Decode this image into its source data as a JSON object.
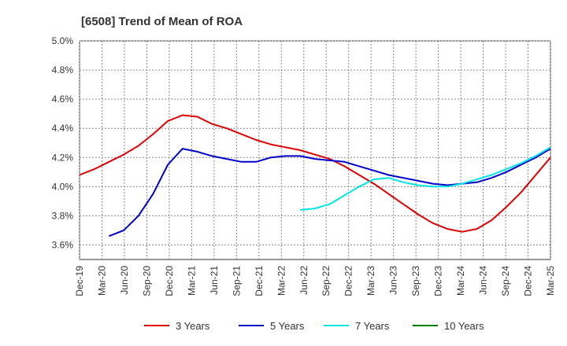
{
  "chart_data": {
    "type": "line",
    "title": "[6508]  Trend of Mean of ROA",
    "xlabel": "",
    "ylabel": "",
    "ylim": [
      3.5,
      5.0
    ],
    "y_ticks": [
      "3.6%",
      "3.8%",
      "4.0%",
      "4.2%",
      "4.4%",
      "4.6%",
      "4.8%",
      "5.0%"
    ],
    "x_ticks": [
      "Dec-19",
      "Mar-20",
      "Jun-20",
      "Sep-20",
      "Dec-20",
      "Mar-21",
      "Jun-21",
      "Sep-21",
      "Dec-21",
      "Mar-22",
      "Jun-22",
      "Sep-22",
      "Dec-22",
      "Mar-23",
      "Jun-23",
      "Sep-23",
      "Dec-23",
      "Mar-24",
      "Jun-24",
      "Sep-24",
      "Dec-24",
      "Mar-25"
    ],
    "grid": true,
    "legend_position": "bottom",
    "series": [
      {
        "name": "3 Years",
        "color": "#dd0000",
        "values": [
          4.08,
          4.12,
          4.17,
          4.22,
          4.28,
          4.36,
          4.45,
          4.49,
          4.48,
          4.43,
          4.4,
          4.36,
          4.32,
          4.29,
          4.27,
          4.25,
          4.22,
          4.19,
          4.14,
          4.08,
          4.02,
          3.95,
          3.88,
          3.81,
          3.75,
          3.71,
          3.69,
          3.71,
          3.77,
          3.86,
          3.96,
          4.08,
          4.2
        ]
      },
      {
        "name": "5 Years",
        "color": "#0000cc",
        "values": [
          null,
          null,
          3.66,
          3.7,
          3.8,
          3.95,
          4.15,
          4.26,
          4.24,
          4.21,
          4.19,
          4.17,
          4.17,
          4.2,
          4.21,
          4.21,
          4.19,
          4.18,
          4.17,
          4.14,
          4.11,
          4.08,
          4.06,
          4.04,
          4.02,
          4.01,
          4.02,
          4.03,
          4.06,
          4.1,
          4.15,
          4.2,
          4.26
        ]
      },
      {
        "name": "7 Years",
        "color": "#00e5e5",
        "values": [
          null,
          null,
          null,
          null,
          null,
          null,
          null,
          null,
          null,
          null,
          null,
          null,
          null,
          null,
          null,
          3.84,
          3.85,
          3.88,
          3.94,
          4.0,
          4.05,
          4.06,
          4.03,
          4.01,
          4.0,
          4.0,
          4.02,
          4.05,
          4.08,
          4.12,
          4.16,
          4.21,
          4.27
        ]
      },
      {
        "name": "10 Years",
        "color": "#008000",
        "values": []
      }
    ]
  }
}
